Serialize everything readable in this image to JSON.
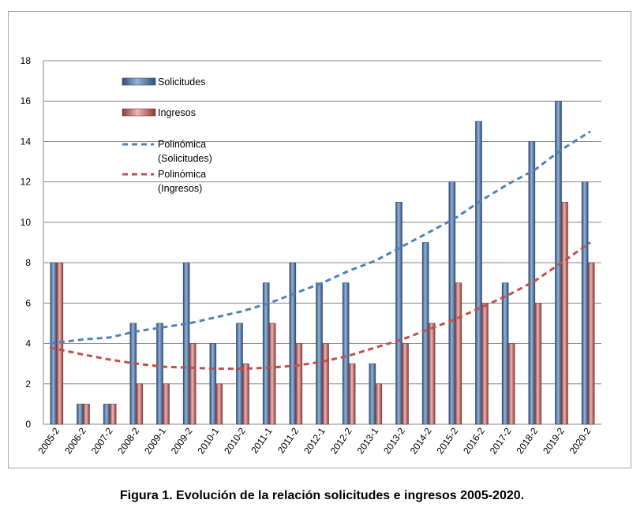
{
  "caption": "Figura 1. Evolución de la relación solicitudes e ingresos 2005-2020.",
  "chart_data": {
    "type": "bar",
    "title": "",
    "xlabel": "",
    "ylabel": "",
    "ylim": [
      0,
      18
    ],
    "yticks": [
      0,
      2,
      4,
      6,
      8,
      10,
      12,
      14,
      16,
      18
    ],
    "grid": true,
    "legend_position": "top-left",
    "categories": [
      "2005-2",
      "2006-2",
      "2007-2",
      "2008-2",
      "2009-1",
      "2009-2",
      "2010-1",
      "2010-2",
      "2011-1",
      "2011-2",
      "2012-1",
      "2012-2",
      "2013-1",
      "2013-2",
      "2014-2",
      "2015-2",
      "2016-2",
      "2017-2",
      "2018-2",
      "2019-2",
      "2020-2"
    ],
    "series": [
      {
        "name": "Solicitudes",
        "color": "#4f81bd",
        "values": [
          8,
          1,
          1,
          5,
          5,
          8,
          4,
          5,
          7,
          8,
          7,
          7,
          3,
          11,
          9,
          12,
          15,
          7,
          14,
          16,
          12
        ]
      },
      {
        "name": "Ingresos",
        "color": "#c0504d",
        "values": [
          8,
          1,
          1,
          2,
          2,
          4,
          2,
          3,
          5,
          4,
          4,
          3,
          2,
          4,
          5,
          7,
          6,
          4,
          6,
          11,
          8
        ]
      }
    ],
    "trendlines": [
      {
        "name": "Polinómica\n(Solicitudes)",
        "label_lines": [
          "Polinómica",
          "(Solicitudes)"
        ],
        "color": "#4f81bd",
        "style": "dashed",
        "values": [
          4.0,
          4.2,
          4.3,
          4.6,
          4.8,
          5.0,
          5.3,
          5.6,
          6.0,
          6.5,
          7.0,
          7.6,
          8.1,
          8.8,
          9.5,
          10.2,
          11.1,
          11.9,
          12.6,
          13.6,
          14.5
        ]
      },
      {
        "name": "Polinómica\n(Ingresos)",
        "label_lines": [
          "Polinómica",
          "(Ingresos)"
        ],
        "color": "#c0504d",
        "style": "dashed",
        "values": [
          3.8,
          3.45,
          3.2,
          3.0,
          2.85,
          2.8,
          2.75,
          2.75,
          2.8,
          2.9,
          3.1,
          3.4,
          3.8,
          4.2,
          4.7,
          5.2,
          5.8,
          6.4,
          7.1,
          8.0,
          9.0
        ]
      }
    ]
  }
}
